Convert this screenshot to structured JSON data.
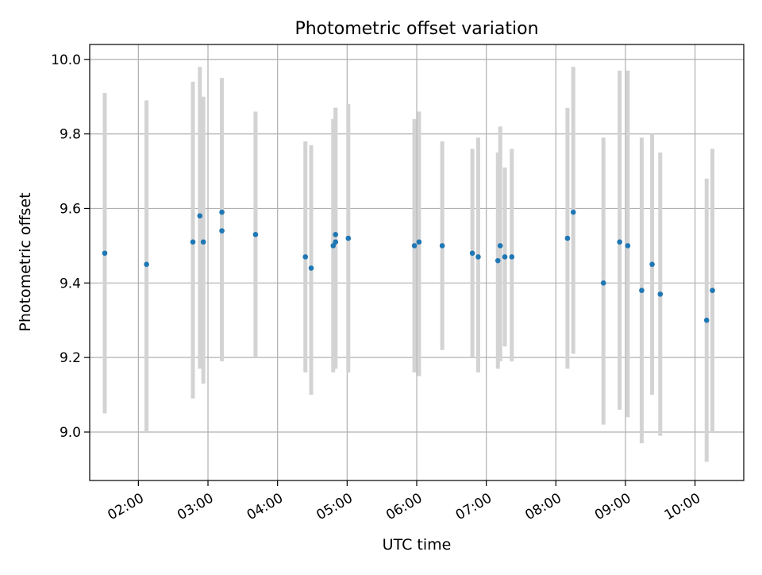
{
  "chart_data": {
    "type": "scatter",
    "title": "Photometric offset variation",
    "xlabel": "UTC time",
    "ylabel": "Photometric offset",
    "x_unit": "UTC time (HH:MM)",
    "xlim": [
      "01:18",
      "10:42"
    ],
    "ylim": [
      8.87,
      10.04
    ],
    "x_ticks": [
      "02:00",
      "03:00",
      "04:00",
      "05:00",
      "06:00",
      "07:00",
      "08:00",
      "09:00",
      "10:00"
    ],
    "y_ticks": [
      9.0,
      9.2,
      9.4,
      9.6,
      9.8,
      10.0
    ],
    "y_tick_labels": [
      "9.0",
      "9.2",
      "9.4",
      "9.6",
      "9.8",
      "10.0"
    ],
    "grid": true,
    "point_color": "#1f77b4",
    "errorbar_color": "#d3d3d3",
    "series": [
      {
        "points": [
          {
            "x": "01:31",
            "y": 9.48,
            "low": 9.05,
            "high": 9.91
          },
          {
            "x": "02:07",
            "y": 9.45,
            "low": 9.0,
            "high": 9.89
          },
          {
            "x": "02:47",
            "y": 9.51,
            "low": 9.09,
            "high": 9.94
          },
          {
            "x": "02:53",
            "y": 9.58,
            "low": 9.17,
            "high": 9.98
          },
          {
            "x": "02:56",
            "y": 9.51,
            "low": 9.13,
            "high": 9.9
          },
          {
            "x": "03:12",
            "y": 9.54,
            "low": 9.19,
            "high": 9.95
          },
          {
            "x": "03:12",
            "y": 9.59,
            "low": 9.22,
            "high": 9.95
          },
          {
            "x": "03:41",
            "y": 9.53,
            "low": 9.2,
            "high": 9.86
          },
          {
            "x": "04:24",
            "y": 9.47,
            "low": 9.16,
            "high": 9.78
          },
          {
            "x": "04:29",
            "y": 9.44,
            "low": 9.1,
            "high": 9.77
          },
          {
            "x": "04:48",
            "y": 9.5,
            "low": 9.16,
            "high": 9.84
          },
          {
            "x": "04:50",
            "y": 9.51,
            "low": 9.17,
            "high": 9.87
          },
          {
            "x": "04:50",
            "y": 9.53,
            "low": 9.19,
            "high": 9.87
          },
          {
            "x": "05:01",
            "y": 9.52,
            "low": 9.16,
            "high": 9.88
          },
          {
            "x": "05:58",
            "y": 9.5,
            "low": 9.16,
            "high": 9.84
          },
          {
            "x": "06:02",
            "y": 9.51,
            "low": 9.15,
            "high": 9.86
          },
          {
            "x": "06:22",
            "y": 9.5,
            "low": 9.22,
            "high": 9.78
          },
          {
            "x": "06:48",
            "y": 9.48,
            "low": 9.2,
            "high": 9.76
          },
          {
            "x": "06:53",
            "y": 9.47,
            "low": 9.16,
            "high": 9.79
          },
          {
            "x": "07:10",
            "y": 9.46,
            "low": 9.17,
            "high": 9.75
          },
          {
            "x": "07:12",
            "y": 9.5,
            "low": 9.19,
            "high": 9.82
          },
          {
            "x": "07:16",
            "y": 9.47,
            "low": 9.23,
            "high": 9.71
          },
          {
            "x": "07:22",
            "y": 9.47,
            "low": 9.19,
            "high": 9.76
          },
          {
            "x": "08:10",
            "y": 9.52,
            "low": 9.17,
            "high": 9.87
          },
          {
            "x": "08:15",
            "y": 9.59,
            "low": 9.21,
            "high": 9.98
          },
          {
            "x": "08:41",
            "y": 9.4,
            "low": 9.02,
            "high": 9.79
          },
          {
            "x": "08:55",
            "y": 9.51,
            "low": 9.06,
            "high": 9.97
          },
          {
            "x": "09:02",
            "y": 9.5,
            "low": 9.04,
            "high": 9.97
          },
          {
            "x": "09:14",
            "y": 9.38,
            "low": 8.97,
            "high": 9.79
          },
          {
            "x": "09:23",
            "y": 9.45,
            "low": 9.1,
            "high": 9.8
          },
          {
            "x": "09:30",
            "y": 9.37,
            "low": 8.99,
            "high": 9.75
          },
          {
            "x": "10:10",
            "y": 9.3,
            "low": 8.92,
            "high": 9.68
          },
          {
            "x": "10:15",
            "y": 9.38,
            "low": 9.0,
            "high": 9.76
          }
        ]
      }
    ]
  }
}
